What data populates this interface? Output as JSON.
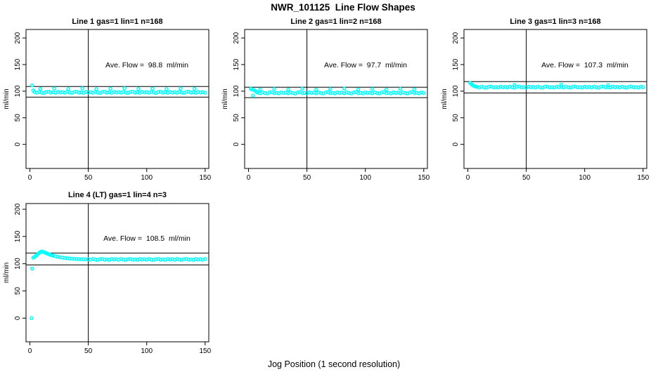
{
  "main_title": "NWR_101125  Line Flow Shapes",
  "x_axis_label": "Jog Position (1 second resolution)",
  "colors": {
    "points": "#00FFFF",
    "lines": "#000000",
    "background": "#FFFFFF"
  },
  "chart_data": [
    {
      "type": "scatter",
      "title": "Line 1 gas=1 lin=1 n=168",
      "annotation": "Ave. Flow =  98.8  ml/min",
      "ave_flow_ml_min": 98.8,
      "ylabel": "ml/min",
      "x_ticks": [
        0,
        50,
        100,
        150
      ],
      "y_ticks": [
        0,
        50,
        100,
        150,
        200
      ],
      "vline_x": 50,
      "hlines": [
        108.7,
        88.9
      ],
      "start_points": [
        [
          2,
          110.8
        ],
        [
          3,
          101.5
        ]
      ],
      "bump_points": [
        [
          9,
          104.3
        ],
        [
          21,
          105.1
        ],
        [
          33,
          104.0
        ],
        [
          45,
          105.4
        ],
        [
          57,
          103.8
        ],
        [
          69,
          104.8
        ],
        [
          81,
          105.6
        ],
        [
          93,
          104.2
        ],
        [
          105,
          104.9
        ],
        [
          117,
          103.9
        ],
        [
          129,
          105.2
        ],
        [
          141,
          104.5
        ]
      ],
      "steady": {
        "x0": 4,
        "dx": 2,
        "y": [
          98.3,
          97.1,
          98.8,
          97.5,
          96.7,
          98.5,
          99.1,
          97.3,
          97.9,
          96.9,
          98.7,
          97.6,
          98.3,
          97.1,
          98.8,
          97.5,
          96.7,
          98.5,
          99.1,
          97.3,
          97.9,
          96.9,
          98.7,
          97.6,
          98.3,
          97.1,
          98.8,
          97.5,
          96.7,
          98.5,
          99.1,
          97.3,
          97.9,
          96.9,
          98.7,
          97.6,
          98.3,
          97.1,
          98.8,
          97.5,
          96.7,
          98.5,
          99.1,
          97.3,
          97.9,
          96.9,
          98.7,
          97.6,
          98.3,
          97.1,
          98.8,
          97.5,
          96.7,
          98.5,
          99.1,
          97.3,
          97.9,
          96.9,
          98.7,
          97.6,
          98.3,
          97.1,
          98.8,
          97.5,
          96.7,
          98.5,
          99.1,
          97.3,
          97.9,
          96.9,
          98.7,
          97.6,
          98.3,
          97.1
        ]
      }
    },
    {
      "type": "scatter",
      "title": "Line 2 gas=1 lin=2 n=168",
      "annotation": "Ave. Flow =  97.7  ml/min",
      "ave_flow_ml_min": 97.7,
      "ylabel": "ml/min",
      "x_ticks": [
        0,
        50,
        100,
        150
      ],
      "y_ticks": [
        0,
        50,
        100,
        150,
        200
      ],
      "vline_x": 50,
      "hlines": [
        107.5,
        87.9
      ],
      "start_points": [
        [
          2,
          104.5
        ],
        [
          3,
          103.0
        ],
        [
          4,
          91.5
        ],
        [
          5,
          102.0
        ],
        [
          6,
          100.2
        ],
        [
          7,
          98.6
        ]
      ],
      "bump_points": [
        [
          10,
          103.4
        ],
        [
          22,
          104.2
        ],
        [
          34,
          103.1
        ],
        [
          46,
          104.5
        ],
        [
          58,
          102.9
        ],
        [
          70,
          103.9
        ],
        [
          82,
          104.7
        ],
        [
          94,
          103.3
        ],
        [
          106,
          104.0
        ],
        [
          118,
          103.0
        ],
        [
          130,
          104.3
        ],
        [
          142,
          103.6
        ]
      ],
      "steady": {
        "x0": 8,
        "dx": 2,
        "y": [
          97.3,
          96.1,
          97.8,
          96.5,
          95.7,
          97.5,
          98.1,
          96.3,
          96.9,
          95.9,
          97.7,
          96.6,
          97.3,
          96.1,
          97.8,
          96.5,
          95.7,
          97.5,
          98.1,
          96.3,
          96.9,
          95.9,
          97.7,
          96.6,
          97.3,
          96.1,
          97.8,
          96.5,
          95.7,
          97.5,
          98.1,
          96.3,
          96.9,
          95.9,
          97.7,
          96.6,
          97.3,
          96.1,
          97.8,
          96.5,
          95.7,
          97.5,
          98.1,
          96.3,
          96.9,
          95.9,
          97.7,
          96.6,
          97.3,
          96.1,
          97.8,
          96.5,
          95.7,
          97.5,
          98.1,
          96.3,
          96.9,
          95.9,
          97.7,
          96.6,
          97.3,
          96.1,
          97.8,
          96.5,
          95.7,
          97.5,
          98.1,
          96.3,
          96.9,
          95.9,
          97.7,
          96.6
        ]
      }
    },
    {
      "type": "scatter",
      "title": "Line 3 gas=1 lin=3 n=168",
      "annotation": "Ave. Flow =  107.3  ml/min",
      "ave_flow_ml_min": 107.3,
      "ylabel": "ml/min",
      "x_ticks": [
        0,
        50,
        100,
        150
      ],
      "y_ticks": [
        0,
        50,
        100,
        150,
        200
      ],
      "vline_x": 50,
      "hlines": [
        118.0,
        96.6
      ],
      "start_points": [
        [
          2,
          115.5
        ],
        [
          3,
          113.5
        ],
        [
          4,
          111.5
        ],
        [
          5,
          110.2
        ],
        [
          6,
          109.2
        ],
        [
          7,
          108.6
        ]
      ],
      "bump_points": [
        [
          40,
          111.5
        ],
        [
          80,
          112.3
        ],
        [
          120,
          111.2
        ]
      ],
      "steady": {
        "x0": 8,
        "dx": 2,
        "y": [
          108.1,
          106.9,
          108.6,
          107.3,
          106.5,
          108.3,
          108.9,
          107.1,
          107.7,
          106.7,
          108.5,
          107.4,
          108.1,
          106.9,
          108.6,
          107.3,
          106.5,
          108.3,
          108.9,
          107.1,
          107.7,
          106.7,
          108.5,
          107.4,
          108.1,
          106.9,
          108.6,
          107.3,
          106.5,
          108.3,
          108.9,
          107.1,
          107.7,
          106.7,
          108.5,
          107.4,
          108.1,
          106.9,
          108.6,
          107.3,
          106.5,
          108.3,
          108.9,
          107.1,
          107.7,
          106.7,
          108.5,
          107.4,
          108.1,
          106.9,
          108.6,
          107.3,
          106.5,
          108.3,
          108.9,
          107.1,
          107.7,
          106.7,
          108.5,
          107.4,
          108.1,
          106.9,
          108.6,
          107.3,
          106.5,
          108.3,
          108.9,
          107.1,
          107.7,
          106.7,
          108.5,
          107.4
        ]
      }
    },
    {
      "type": "scatter",
      "title": "Line 4 (LT) gas=1 lin=4 n=3",
      "annotation": "Ave. Flow =  108.5  ml/min",
      "ave_flow_ml_min": 108.5,
      "ylabel": "ml/min",
      "x_ticks": [
        0,
        50,
        100,
        150
      ],
      "y_ticks": [
        0,
        50,
        100,
        150,
        200
      ],
      "vline_x": 50,
      "hlines": [
        119.4,
        97.7
      ],
      "start_points": [
        [
          1.5,
          0
        ],
        [
          2,
          91
        ],
        [
          3,
          111
        ],
        [
          4,
          112.5
        ],
        [
          5,
          114
        ],
        [
          6,
          116
        ],
        [
          7,
          118
        ],
        [
          8,
          120
        ],
        [
          9,
          121.5
        ],
        [
          10,
          122.3
        ],
        [
          11,
          122
        ],
        [
          12,
          121.3
        ],
        [
          13,
          120.4
        ],
        [
          14,
          119.4
        ],
        [
          15,
          118.5
        ],
        [
          16,
          117.6
        ],
        [
          17,
          116.8
        ],
        [
          18,
          116
        ],
        [
          19,
          115.3
        ],
        [
          20,
          114.6
        ],
        [
          22,
          113.5
        ],
        [
          24,
          112.6
        ],
        [
          26,
          111.8
        ],
        [
          28,
          111.1
        ],
        [
          30,
          110.5
        ],
        [
          32,
          110
        ],
        [
          34,
          109.6
        ],
        [
          36,
          109.2
        ],
        [
          38,
          108.9
        ],
        [
          40,
          108.6
        ],
        [
          42,
          108.4
        ],
        [
          44,
          108.2
        ],
        [
          46,
          108
        ],
        [
          48,
          107.9
        ]
      ],
      "bump_points": [],
      "steady": {
        "x0": 50,
        "dx": 2,
        "y": [
          108.2,
          107.2,
          108.6,
          107.6,
          106.9,
          108.4,
          108.8,
          107.4,
          107.9,
          107.1,
          108.5,
          107.6,
          108.2,
          107.2,
          108.6,
          107.6,
          106.9,
          108.4,
          108.8,
          107.4,
          107.9,
          107.1,
          108.5,
          107.6,
          108.2,
          107.2,
          108.6,
          107.6,
          106.9,
          108.4,
          108.8,
          107.4,
          107.9,
          107.1,
          108.5,
          107.6,
          108.2,
          107.2,
          108.6,
          107.6,
          106.9,
          108.4,
          108.8,
          107.4,
          107.9,
          107.1,
          108.5,
          107.6,
          108.2,
          107.2,
          108.6
        ]
      }
    }
  ]
}
